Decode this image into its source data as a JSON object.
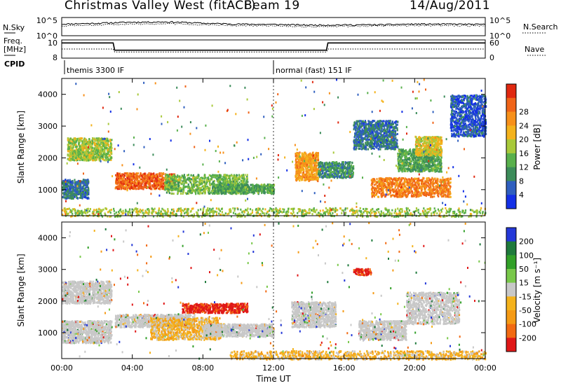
{
  "header": {
    "title": "Christmas Valley West (fitACF)",
    "beam": "Beam 19",
    "date": "14/Aug/2011"
  },
  "sidepanel": {
    "nsky": "N.Sky",
    "freq_line1": "Freq.",
    "freq_line2": "[MHz]",
    "cpid": "CPID",
    "nsearch": "N.Search",
    "nave": "Nave"
  },
  "colors": {
    "power_scale": [
      "#1430e6",
      "#2f5fbf",
      "#3c8c5a",
      "#59b04c",
      "#a8c93a",
      "#f4b21c",
      "#f7901a",
      "#f06418",
      "#e02810"
    ],
    "velocity_scale": [
      "#2438d8",
      "#1f7a3c",
      "#32a028",
      "#79c84a",
      "#c8c8c8",
      "#f4b21c",
      "#f59a14",
      "#f26a12",
      "#e01818"
    ],
    "ground_scatter": "#c8c8c8"
  },
  "chart_data": [
    {
      "type": "line",
      "panel": "noise",
      "series": [
        {
          "name": "N.Sky",
          "x": [
            "00:00",
            "02:00",
            "04:00",
            "06:00",
            "08:00",
            "10:00",
            "12:00",
            "14:00",
            "16:00",
            "18:00",
            "20:00",
            "22:00",
            "24:00"
          ],
          "values": [
            1500,
            2500,
            5000,
            6000,
            2500,
            1500,
            1200,
            800,
            900,
            1000,
            1500,
            1500,
            1200
          ]
        },
        {
          "name": "N.Search",
          "x": [
            "00:00",
            "02:00",
            "04:00",
            "06:00",
            "08:00",
            "10:00",
            "12:00",
            "14:00",
            "16:00",
            "18:00",
            "20:00",
            "22:00",
            "24:00"
          ],
          "values": [
            500,
            800,
            1500,
            2000,
            900,
            600,
            500,
            300,
            400,
            500,
            600,
            600,
            500
          ]
        }
      ],
      "ylabel_left": "N.Sky",
      "ylabel_right": "N.Search",
      "yticks_left": [
        "10^5",
        "10^0"
      ],
      "yticks_right": [
        "10^5",
        "10^0"
      ],
      "yscale": "log"
    },
    {
      "type": "line",
      "panel": "frequency",
      "series": [
        {
          "name": "Freq. [MHz]",
          "x": [
            "00:00",
            "02:55",
            "03:00",
            "15:00",
            "15:05",
            "24:00"
          ],
          "values": [
            10.5,
            10.5,
            9.3,
            9.3,
            10.5,
            10.5
          ]
        },
        {
          "name": "Nave",
          "x": [
            "00:00",
            "02:55",
            "03:00",
            "15:00",
            "15:05",
            "24:00"
          ],
          "values": [
            30,
            30,
            20,
            20,
            30,
            30
          ]
        }
      ],
      "ylabel_left": "Freq. [MHz]",
      "ylabel_right": "Nave",
      "yticks_left": [
        "10",
        "8"
      ],
      "yticks_right": [
        "60",
        "0"
      ]
    },
    {
      "type": "table",
      "panel": "cpid",
      "rows": [
        {
          "start": "00:00",
          "end": "12:00",
          "label": "themis 3300 IF"
        },
        {
          "start": "12:00",
          "end": "24:00",
          "label": "normal (fast) 151 IF"
        }
      ]
    },
    {
      "type": "heatmap",
      "panel": "power",
      "x_range": [
        "00:00",
        "24:00"
      ],
      "y_range": [
        180,
        4500
      ],
      "ylabel": "Slant Range [km]",
      "yticks": [
        1000,
        2000,
        3000,
        4000
      ],
      "colorbar_label": "Power [dB]",
      "colorbar_ticks": [
        4,
        8,
        12,
        16,
        20,
        24,
        28
      ],
      "regions": [
        {
          "t": [
            0.3,
            2.8
          ],
          "r": [
            1950,
            2650
          ],
          "level": 16
        },
        {
          "t": [
            0.0,
            1.5
          ],
          "r": [
            750,
            1350
          ],
          "level": 8
        },
        {
          "t": [
            3.0,
            6.4
          ],
          "r": [
            1050,
            1550
          ],
          "level": 26
        },
        {
          "t": [
            5.8,
            10.5
          ],
          "r": [
            900,
            1500
          ],
          "level": 14
        },
        {
          "t": [
            8.5,
            12.0
          ],
          "r": [
            900,
            1200
          ],
          "level": 12
        },
        {
          "t": [
            13.2,
            14.5
          ],
          "r": [
            1300,
            2200
          ],
          "level": 22
        },
        {
          "t": [
            14.5,
            16.5
          ],
          "r": [
            1400,
            1900
          ],
          "level": 10
        },
        {
          "t": [
            17.5,
            22.0
          ],
          "r": [
            800,
            1400
          ],
          "level": 24
        },
        {
          "t": [
            16.5,
            19.0
          ],
          "r": [
            2300,
            3200
          ],
          "level": 8
        },
        {
          "t": [
            19.0,
            21.5
          ],
          "r": [
            1600,
            2300
          ],
          "level": 12
        },
        {
          "t": [
            20.0,
            21.5
          ],
          "r": [
            2100,
            2700
          ],
          "level": 18
        },
        {
          "t": [
            22.0,
            24.0
          ],
          "r": [
            2700,
            4000
          ],
          "level": 6
        },
        {
          "t": [
            0.0,
            24.0
          ],
          "r": [
            180,
            450
          ],
          "level": 16
        }
      ]
    },
    {
      "type": "heatmap",
      "panel": "velocity",
      "x_range": [
        "00:00",
        "24:00"
      ],
      "y_range": [
        180,
        4500
      ],
      "xlabel": "Time UT",
      "xticks": [
        "00:00",
        "04:00",
        "08:00",
        "12:00",
        "16:00",
        "20:00",
        "00:00"
      ],
      "ylabel": "Slant Range [km]",
      "yticks": [
        1000,
        2000,
        3000,
        4000
      ],
      "colorbar_label": "Velocity [m s^-1]",
      "colorbar_ticks": [
        200,
        100,
        50,
        15,
        -15,
        -50,
        -100,
        -200
      ],
      "regions": [
        {
          "t": [
            0.0,
            2.8
          ],
          "r": [
            1950,
            2650
          ],
          "level": "ground"
        },
        {
          "t": [
            0.0,
            2.8
          ],
          "r": [
            700,
            1400
          ],
          "level": "ground"
        },
        {
          "t": [
            3.0,
            7.5
          ],
          "r": [
            1200,
            1600
          ],
          "level": "ground"
        },
        {
          "t": [
            6.8,
            10.5
          ],
          "r": [
            1650,
            1950
          ],
          "level": -150
        },
        {
          "t": [
            5.0,
            9.0
          ],
          "r": [
            800,
            1500
          ],
          "level": -50
        },
        {
          "t": [
            8.0,
            12.0
          ],
          "r": [
            900,
            1300
          ],
          "level": "ground"
        },
        {
          "t": [
            13.0,
            15.5
          ],
          "r": [
            1200,
            2000
          ],
          "level": "ground"
        },
        {
          "t": [
            16.8,
            19.5
          ],
          "r": [
            800,
            1400
          ],
          "level": "ground"
        },
        {
          "t": [
            19.5,
            22.5
          ],
          "r": [
            1300,
            2300
          ],
          "level": "ground"
        },
        {
          "t": [
            16.5,
            17.5
          ],
          "r": [
            2850,
            3050
          ],
          "level": -200
        },
        {
          "t": [
            9.5,
            24.0
          ],
          "r": [
            180,
            450
          ],
          "level": -50
        }
      ]
    }
  ]
}
